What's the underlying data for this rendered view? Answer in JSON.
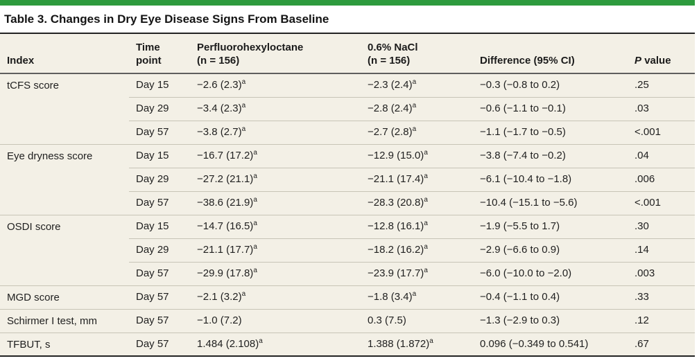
{
  "accent_color": "#2e9b3e",
  "table": {
    "title": "Table 3. Changes in Dry Eye Disease Signs From Baseline",
    "headers": {
      "index": "Index",
      "time": "Time\npoint",
      "pfho": "Perfluorohexyloctane\n(n = 156)",
      "nacl": "0.6% NaCl\n(n = 156)",
      "difference": "Difference (95% CI)",
      "p_italic": "P",
      "p_rest": "value"
    },
    "footnote_marker": "a",
    "rows": [
      {
        "index": "tCFS score",
        "rowspan": 3,
        "time": "Day 15",
        "pfho": "−2.6 (2.3)",
        "pfho_sup": "a",
        "nacl": "−2.3 (2.4)",
        "nacl_sup": "a",
        "diff": "−0.3 (−0.8 to 0.2)",
        "p": ".25"
      },
      {
        "time": "Day 29",
        "pfho": "−3.4 (2.3)",
        "pfho_sup": "a",
        "nacl": "−2.8 (2.4)",
        "nacl_sup": "a",
        "diff": "−0.6 (−1.1 to −0.1)",
        "p": ".03"
      },
      {
        "time": "Day 57",
        "pfho": "−3.8 (2.7)",
        "pfho_sup": "a",
        "nacl": "−2.7 (2.8)",
        "nacl_sup": "a",
        "diff": "−1.1 (−1.7 to −0.5)",
        "p": "<.001"
      },
      {
        "index": "Eye dryness score",
        "rowspan": 3,
        "time": "Day 15",
        "pfho": "−16.7 (17.2)",
        "pfho_sup": "a",
        "nacl": "−12.9 (15.0)",
        "nacl_sup": "a",
        "diff": "−3.8 (−7.4 to −0.2)",
        "p": ".04"
      },
      {
        "time": "Day 29",
        "pfho": "−27.2 (21.1)",
        "pfho_sup": "a",
        "nacl": "−21.1 (17.4)",
        "nacl_sup": "a",
        "diff": "−6.1 (−10.4 to −1.8)",
        "p": ".006"
      },
      {
        "time": "Day 57",
        "pfho": "−38.6 (21.9)",
        "pfho_sup": "a",
        "nacl": "−28.3 (20.8)",
        "nacl_sup": "a",
        "diff": "−10.4 (−15.1 to −5.6)",
        "p": "<.001"
      },
      {
        "index": "OSDI score",
        "rowspan": 3,
        "time": "Day 15",
        "pfho": "−14.7 (16.5)",
        "pfho_sup": "a",
        "nacl": "−12.8 (16.1)",
        "nacl_sup": "a",
        "diff": "−1.9 (−5.5 to 1.7)",
        "p": ".30"
      },
      {
        "time": "Day 29",
        "pfho": "−21.1 (17.7)",
        "pfho_sup": "a",
        "nacl": "−18.2 (16.2)",
        "nacl_sup": "a",
        "diff": "−2.9 (−6.6 to 0.9)",
        "p": ".14"
      },
      {
        "time": "Day 57",
        "pfho": "−29.9 (17.8)",
        "pfho_sup": "a",
        "nacl": "−23.9 (17.7)",
        "nacl_sup": "a",
        "diff": "−6.0 (−10.0 to −2.0)",
        "p": ".003"
      },
      {
        "index": "MGD score",
        "rowspan": 1,
        "time": "Day 57",
        "pfho": "−2.1 (3.2)",
        "pfho_sup": "a",
        "nacl": "−1.8 (3.4)",
        "nacl_sup": "a",
        "diff": "−0.4 (−1.1 to 0.4)",
        "p": ".33"
      },
      {
        "index": "Schirmer I test, mm",
        "rowspan": 1,
        "time": "Day 57",
        "pfho": "−1.0 (7.2)",
        "pfho_sup": "",
        "nacl": "0.3 (7.5)",
        "nacl_sup": "",
        "diff": "−1.3 (−2.9 to 0.3)",
        "p": ".12"
      },
      {
        "index": "TFBUT, s",
        "rowspan": 1,
        "time": "Day 57",
        "pfho": "1.484 (2.108)",
        "pfho_sup": "a",
        "nacl": "1.388 (1.872)",
        "nacl_sup": "a",
        "diff": "0.096 (−0.349 to 0.541)",
        "p": ".67"
      }
    ]
  }
}
